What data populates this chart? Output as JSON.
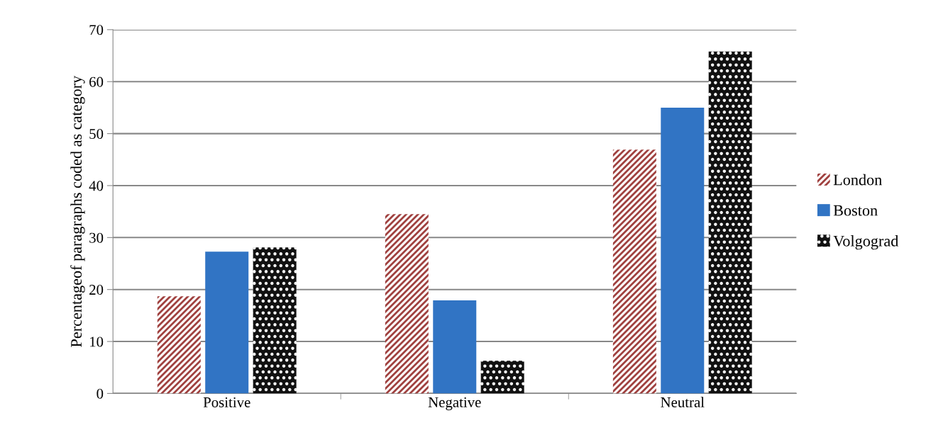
{
  "chart_data": {
    "type": "bar",
    "ylabel": "Percentageof paragraphs coded as category",
    "categories": [
      "Positive",
      "Negative",
      "Neutral"
    ],
    "series": [
      {
        "name": "London",
        "color": "#a0413f",
        "values": [
          18.7,
          34.5,
          46.9
        ]
      },
      {
        "name": "Boston",
        "color": "#3174c4",
        "values": [
          27.3,
          17.9,
          55.0
        ]
      },
      {
        "name": "Volgograd",
        "color": "#111111",
        "values": [
          28.1,
          6.3,
          65.8
        ]
      }
    ],
    "ylim": [
      0,
      70
    ],
    "yticks": [
      0,
      10,
      20,
      30,
      40,
      50,
      60,
      70
    ],
    "grid": "y",
    "legend": "right"
  }
}
